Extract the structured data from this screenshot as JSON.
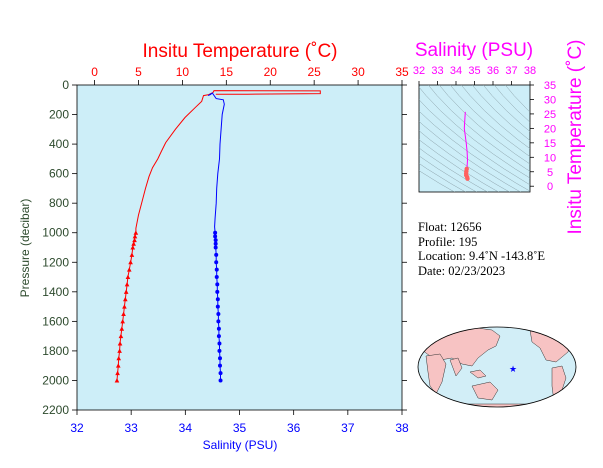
{
  "chart_data": [
    {
      "type": "line",
      "title": "",
      "top_axis": {
        "label": "Insitu Temperature (˚C)",
        "range": [
          -2,
          35
        ],
        "ticks": [
          0,
          5,
          10,
          15,
          20,
          25,
          30,
          35
        ]
      },
      "bottom_axis": {
        "label": "Salinity (PSU)",
        "range": [
          32,
          38
        ],
        "ticks": [
          32,
          33,
          34,
          35,
          36,
          37,
          38
        ]
      },
      "left_axis": {
        "label": "Pressure (decibar)",
        "range": [
          0,
          2200
        ],
        "inverted": true,
        "ticks": [
          0,
          200,
          400,
          600,
          800,
          1000,
          1200,
          1400,
          1600,
          1800,
          2000,
          2200
        ]
      },
      "grid": false,
      "series": [
        {
          "variable": "temperature",
          "color": "#ff0000",
          "marker": "triangle",
          "points": [
            [
              13.8,
              62
            ],
            [
              17.4,
              62
            ],
            [
              25.7,
              58
            ],
            [
              25.7,
              40
            ],
            [
              13.6,
              38
            ],
            [
              13.5,
              50
            ],
            [
              13.0,
              65
            ],
            [
              12.4,
              72
            ],
            [
              12.2,
              110
            ],
            [
              11.5,
              150
            ],
            [
              10.3,
              220
            ],
            [
              9.2,
              300
            ],
            [
              8.1,
              390
            ],
            [
              7.6,
              450
            ],
            [
              7.2,
              500
            ],
            [
              6.6,
              560
            ],
            [
              6.2,
              620
            ],
            [
              5.8,
              700
            ],
            [
              5.4,
              790
            ],
            [
              5.0,
              880
            ],
            [
              4.7,
              970
            ],
            [
              4.7,
              1000
            ],
            [
              4.6,
              1025
            ],
            [
              4.55,
              1050
            ],
            [
              4.45,
              1075
            ],
            [
              4.35,
              1100
            ],
            [
              4.25,
              1150
            ],
            [
              4.1,
              1200
            ],
            [
              3.95,
              1250
            ],
            [
              3.8,
              1300
            ],
            [
              3.7,
              1350
            ],
            [
              3.6,
              1400
            ],
            [
              3.5,
              1450
            ],
            [
              3.4,
              1500
            ],
            [
              3.3,
              1550
            ],
            [
              3.2,
              1600
            ],
            [
              3.1,
              1650
            ],
            [
              3.0,
              1700
            ],
            [
              2.9,
              1750
            ],
            [
              2.85,
              1800
            ],
            [
              2.75,
              1850
            ],
            [
              2.7,
              1900
            ],
            [
              2.62,
              1950
            ],
            [
              2.55,
              2000
            ]
          ]
        },
        {
          "variable": "salinity",
          "color": "#0000ff",
          "marker": "circle",
          "points": [
            [
              34.48,
              62
            ],
            [
              34.42,
              72
            ],
            [
              34.5,
              55
            ],
            [
              34.57,
              92
            ],
            [
              34.7,
              100
            ],
            [
              34.72,
              130
            ],
            [
              34.68,
              200
            ],
            [
              34.66,
              300
            ],
            [
              34.64,
              400
            ],
            [
              34.63,
              500
            ],
            [
              34.6,
              600
            ],
            [
              34.58,
              700
            ],
            [
              34.57,
              800
            ],
            [
              34.55,
              900
            ],
            [
              34.54,
              960
            ],
            [
              34.55,
              1000
            ],
            [
              34.55,
              1025
            ],
            [
              34.56,
              1050
            ],
            [
              34.56,
              1075
            ],
            [
              34.56,
              1100
            ],
            [
              34.57,
              1150
            ],
            [
              34.57,
              1200
            ],
            [
              34.58,
              1250
            ],
            [
              34.58,
              1300
            ],
            [
              34.59,
              1350
            ],
            [
              34.59,
              1400
            ],
            [
              34.6,
              1450
            ],
            [
              34.6,
              1500
            ],
            [
              34.61,
              1550
            ],
            [
              34.61,
              1600
            ],
            [
              34.62,
              1650
            ],
            [
              34.62,
              1700
            ],
            [
              34.63,
              1750
            ],
            [
              34.63,
              1800
            ],
            [
              34.64,
              1850
            ],
            [
              34.64,
              1900
            ],
            [
              34.65,
              1950
            ],
            [
              34.65,
              2000
            ]
          ]
        }
      ]
    },
    {
      "type": "scatter",
      "title": "",
      "x_axis": {
        "label": "Salinity (PSU)",
        "range": [
          32,
          38
        ],
        "ticks": [
          32,
          33,
          34,
          35,
          36,
          37,
          38
        ],
        "position": "top"
      },
      "y_axis": {
        "label": "Insitu Temperature (˚C)",
        "range": [
          -2,
          35
        ],
        "ticks": [
          0,
          5,
          10,
          15,
          20,
          25,
          30,
          35
        ],
        "position": "right"
      },
      "grid": false,
      "series": [
        {
          "name": "",
          "color": "#ff00ff",
          "points": [
            [
              34.5,
              25.7
            ],
            [
              34.45,
              20
            ],
            [
              34.55,
              15
            ],
            [
              34.6,
              12
            ],
            [
              34.62,
              9
            ],
            [
              34.6,
              7
            ],
            [
              34.58,
              6
            ],
            [
              34.56,
              5.2
            ],
            [
              34.55,
              4.5
            ],
            [
              34.55,
              3.8
            ],
            [
              34.6,
              3.2
            ],
            [
              34.62,
              2.6
            ]
          ]
        }
      ]
    }
  ],
  "float_info": {
    "float": "Float:  12656",
    "profile": "Profile:  195",
    "location": "Location:  9.4˚N  -143.8˚E",
    "date": "Date:  02/23/2023"
  },
  "map": {
    "marker": "★",
    "marker_lat": 9.4,
    "marker_lon": -143.8
  },
  "colors": {
    "plot_bg": "#cdeef8",
    "temperature": "#ff0000",
    "salinity": "#0000ff",
    "ts_series": "#ff00ff",
    "axis_text_left": "#2d4a2d",
    "land": "#f7c3c3",
    "ocean": "#d2eef7",
    "contour": "#8aa0a8"
  }
}
